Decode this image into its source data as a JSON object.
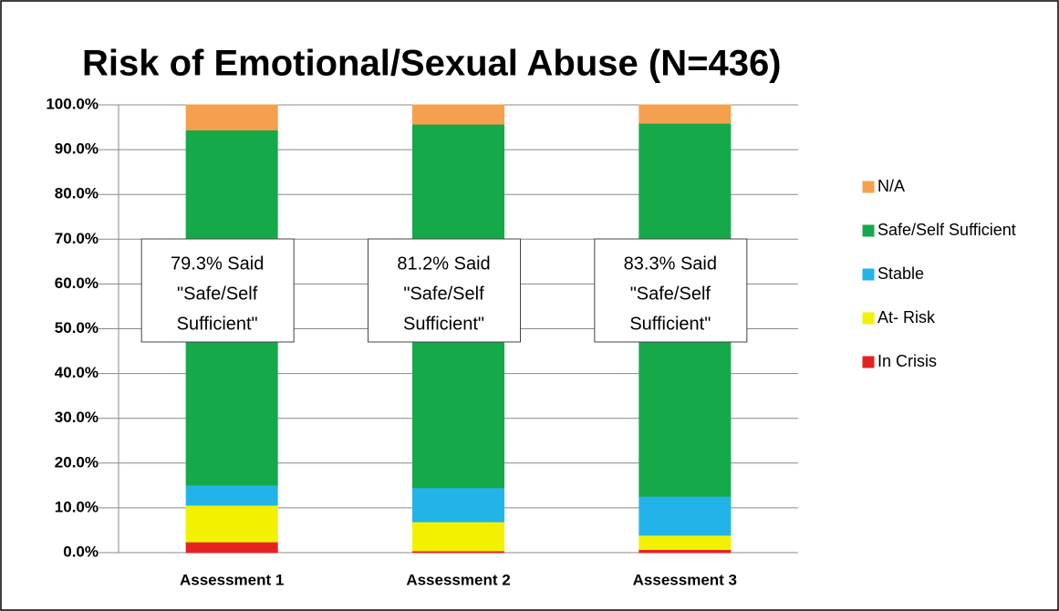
{
  "chart_data": {
    "type": "stacked_bar",
    "title": "Risk of Emotional/Sexual Abuse (N=436)",
    "categories": [
      "Assessment 1",
      "Assessment 2",
      "Assessment 3"
    ],
    "series": [
      {
        "name": "In Crisis",
        "color": "#e52222",
        "values": [
          2.4,
          0.4,
          0.7
        ]
      },
      {
        "name": "At- Risk",
        "color": "#f2f200",
        "values": [
          8.2,
          6.5,
          3.2
        ]
      },
      {
        "name": "Stable",
        "color": "#22b4e8",
        "values": [
          4.5,
          7.6,
          8.7
        ]
      },
      {
        "name": "Safe/Self Sufficient",
        "color": "#16a94a",
        "values": [
          79.3,
          81.2,
          83.3
        ]
      },
      {
        "name": "N/A",
        "color": "#f5a04e",
        "values": [
          5.6,
          4.3,
          4.1
        ]
      }
    ],
    "annotations": [
      {
        "lines": [
          "79.3% Said",
          "\"Safe/Self",
          "Sufficient\""
        ]
      },
      {
        "lines": [
          "81.2% Said",
          "\"Safe/Self",
          "Sufficient\""
        ]
      },
      {
        "lines": [
          "83.3% Said",
          "\"Safe/Self",
          "Sufficient\""
        ]
      }
    ],
    "ylim": [
      0,
      100
    ],
    "yticks": [
      {
        "value": 0,
        "label": "0.0%"
      },
      {
        "value": 10,
        "label": "10.0%"
      },
      {
        "value": 20,
        "label": "20.0%"
      },
      {
        "value": 30,
        "label": "30.0%"
      },
      {
        "value": 40,
        "label": "40.0%"
      },
      {
        "value": 50,
        "label": "50.0%"
      },
      {
        "value": 60,
        "label": "60.0%"
      },
      {
        "value": 70,
        "label": "70.0%"
      },
      {
        "value": 80,
        "label": "80.0%"
      },
      {
        "value": 90,
        "label": "90.0%"
      },
      {
        "value": 100,
        "label": "100.0%"
      }
    ],
    "grid": true,
    "legend": "right"
  }
}
